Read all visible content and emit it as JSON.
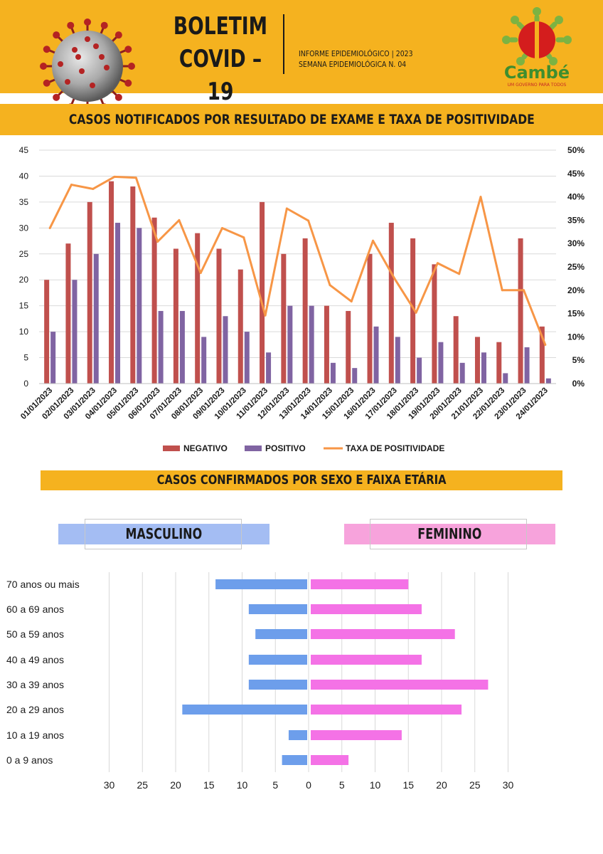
{
  "header": {
    "title_line1": "BOLETIM",
    "title_line2": "COVID – 19",
    "info_line1": "INFORME EPIDEMIOLÓGICO | 2023",
    "info_line2": "SEMANA EPIDEMIOLÓGICA  N. 04",
    "logo_name": "Cambé",
    "logo_slogan": "UM GOVERNO PARA TODOS"
  },
  "section1": {
    "title": "CASOS NOTIFICADOS POR RESULTADO DE EXAME E TAXA DE POSITIVIDADE"
  },
  "section2": {
    "title": "CASOS CONFIRMADOS POR SEXO E FAIXA ETÁRIA"
  },
  "gender": {
    "male_label": "MASCULINO",
    "female_label": "FEMININO"
  },
  "colors": {
    "header": "#f5b21f",
    "negativo": "#c0504d",
    "positivo": "#8064a2",
    "taxa": "#f79646",
    "masculino": "#6d9eeb",
    "feminino": "#f472e6"
  },
  "chart_data": [
    {
      "type": "bar",
      "categories": [
        "01/01/2023",
        "02/01/2023",
        "03/01/2023",
        "04/01/2023",
        "05/01/2023",
        "06/01/2023",
        "07/01/2023",
        "08/01/2023",
        "09/01/2023",
        "10/01/2023",
        "11/01/2023",
        "12/01/2023",
        "13/01/2023",
        "14/01/2023",
        "15/01/2023",
        "16/01/2023",
        "17/01/2023",
        "18/01/2023",
        "19/01/2023",
        "20/01/2023",
        "21/01/2023",
        "22/01/2023",
        "23/01/2023",
        "24/01/2023"
      ],
      "series": [
        {
          "name": "NEGATIVO",
          "type": "bar",
          "axis": "left",
          "values": [
            20,
            27,
            35,
            39,
            38,
            32,
            26,
            29,
            26,
            22,
            35,
            25,
            28,
            15,
            14,
            25,
            31,
            28,
            23,
            13,
            9,
            8,
            28,
            11
          ]
        },
        {
          "name": "POSITIVO",
          "type": "bar",
          "axis": "left",
          "values": [
            10,
            20,
            25,
            31,
            30,
            14,
            14,
            9,
            13,
            10,
            6,
            15,
            15,
            4,
            3,
            11,
            9,
            5,
            8,
            4,
            6,
            2,
            7,
            1
          ]
        },
        {
          "name": "TAXA DE POSITIVIDADE",
          "type": "line",
          "axis": "right",
          "values": [
            33.3,
            42.6,
            41.7,
            44.3,
            44.1,
            30.4,
            35.0,
            23.7,
            33.3,
            31.3,
            14.6,
            37.5,
            34.9,
            21.1,
            17.6,
            30.6,
            22.5,
            15.2,
            25.8,
            23.5,
            40.0,
            20.0,
            20.0,
            8.3
          ]
        }
      ],
      "ylim": [
        0,
        45
      ],
      "yticks": [
        "0",
        "5",
        "10",
        "15",
        "20",
        "25",
        "30",
        "35",
        "40",
        "45"
      ],
      "y2lim": [
        0,
        50
      ],
      "y2ticks": [
        "0%",
        "5%",
        "10%",
        "15%",
        "20%",
        "25%",
        "30%",
        "35%",
        "40%",
        "45%",
        "50%"
      ],
      "grid": true,
      "legend": "bottom"
    },
    {
      "type": "bar",
      "orientation": "horizontal",
      "categories": [
        "70 anos ou mais",
        "60 a 69 anos",
        "50 a 59 anos",
        "40 a 49 anos",
        "30 a 39 anos",
        "20 a 29 anos",
        "10 a 19 anos",
        "0 a 9 anos"
      ],
      "series": [
        {
          "name": "MASCULINO",
          "values": [
            14,
            9,
            8,
            9,
            9,
            19,
            3,
            4
          ]
        },
        {
          "name": "FEMININO",
          "values": [
            15,
            17,
            22,
            17,
            27,
            23,
            14,
            6
          ]
        }
      ],
      "xticks": [
        "30",
        "25",
        "20",
        "15",
        "10",
        "5",
        "0",
        "5",
        "10",
        "15",
        "20",
        "25",
        "30"
      ],
      "xlim": [
        -30,
        30
      ],
      "grid": true
    }
  ]
}
